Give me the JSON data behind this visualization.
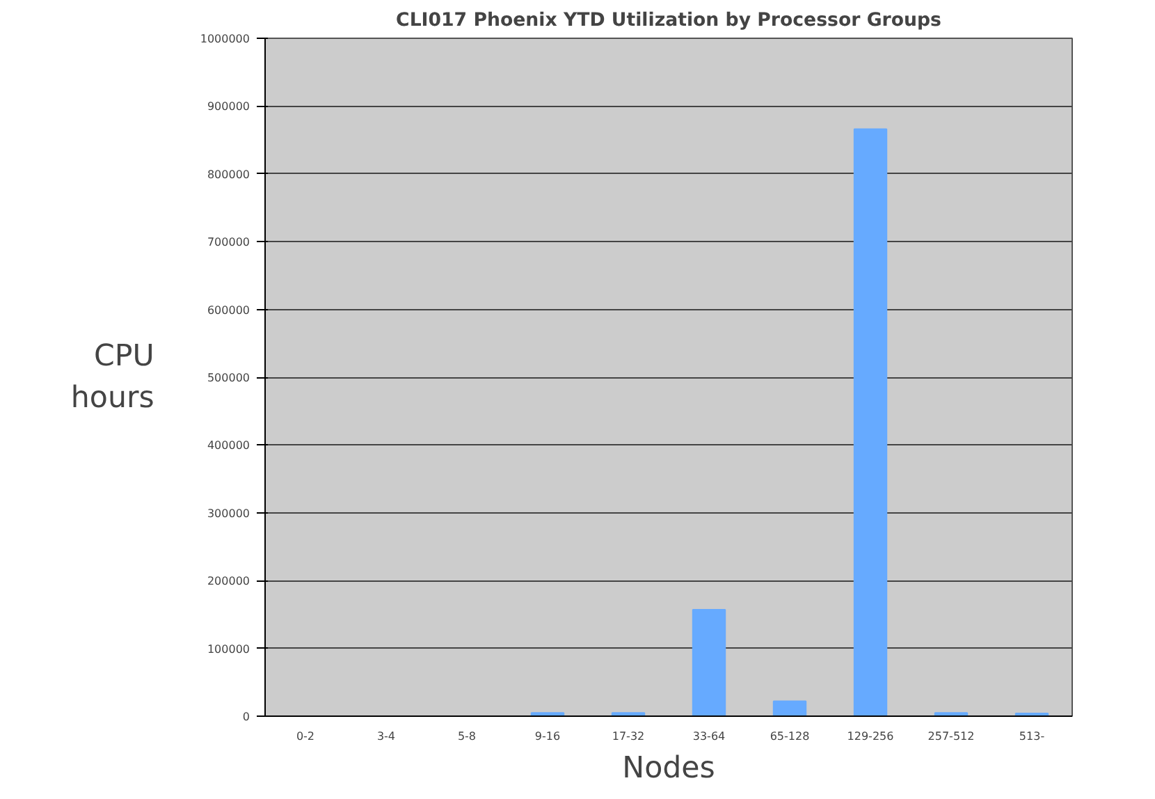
{
  "chart_data": {
    "type": "bar",
    "title": "CLI017 Phoenix YTD Utilization by Processor Groups",
    "xlabel": "Nodes",
    "ylabel": "CPU hours",
    "categories": [
      "0-2",
      "3-4",
      "5-8",
      "9-16",
      "17-32",
      "33-64",
      "65-128",
      "129-256",
      "257-512",
      "513-"
    ],
    "values": [
      0,
      0,
      0,
      5000,
      5000,
      157000,
      22000,
      866000,
      5000,
      4000
    ],
    "color": "#66aaff",
    "ylim": [
      0,
      1000000
    ],
    "yticks": [
      0,
      100000,
      200000,
      300000,
      400000,
      500000,
      600000,
      700000,
      800000,
      900000,
      1000000
    ],
    "grid": "y"
  }
}
